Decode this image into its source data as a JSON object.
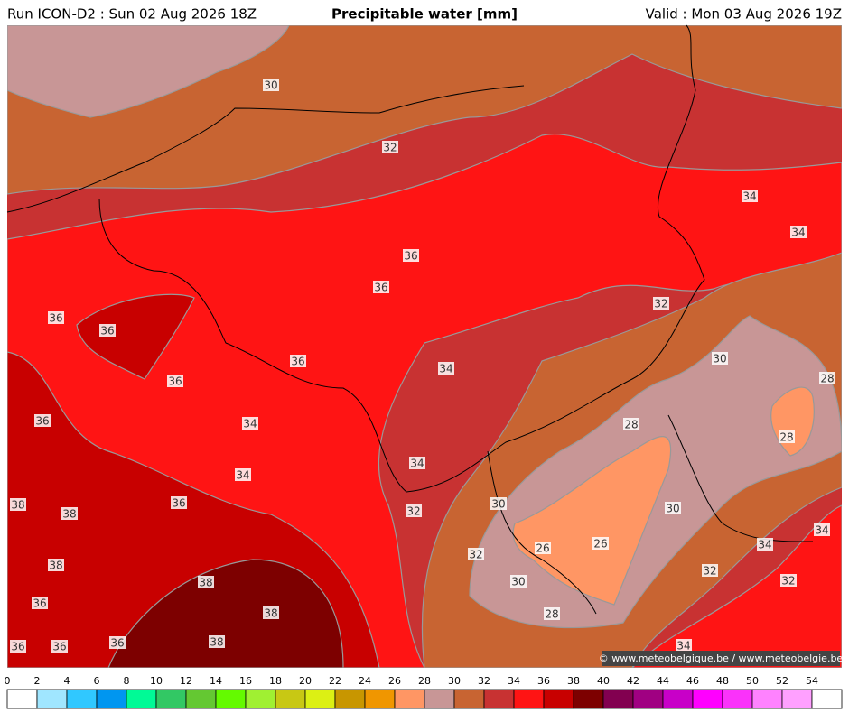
{
  "header": {
    "run": "Run ICON-D2 : Sun 02 Aug 2026 18Z",
    "title": "Precipitable water [mm]",
    "valid": "Valid : Mon 03 Aug 2026 19Z"
  },
  "map": {
    "contour_labels": [
      30,
      32,
      34,
      34,
      36,
      36,
      36,
      36,
      32,
      36,
      34,
      30,
      28,
      36,
      36,
      34,
      28,
      28,
      34,
      34,
      36,
      30,
      38,
      38,
      32,
      30,
      34,
      34,
      26,
      26,
      32,
      38,
      32,
      32,
      38,
      30,
      36,
      38,
      28,
      38,
      36,
      36,
      36,
      34
    ],
    "copyright": "© www.meteobelgique.be / www.meteobelgie.be"
  },
  "colorbar": {
    "ticks": [
      0,
      2,
      4,
      6,
      8,
      10,
      12,
      14,
      16,
      18,
      20,
      22,
      24,
      26,
      28,
      30,
      32,
      34,
      36,
      38,
      40,
      42,
      44,
      46,
      48,
      50,
      52,
      54
    ],
    "colors": [
      "#ffffff",
      "#a0e6ff",
      "#30c8ff",
      "#0096f0",
      "#00fa96",
      "#32c864",
      "#64c832",
      "#64fa00",
      "#a0f032",
      "#c8c814",
      "#dcf014",
      "#c89600",
      "#f09600",
      "#ff9664",
      "#c89696",
      "#c86432",
      "#c83232",
      "#ff1414",
      "#c80000",
      "#7d0000",
      "#820050",
      "#a00082",
      "#c800c8",
      "#ff00ff",
      "#fa32fa",
      "#ff82ff",
      "#ffa0ff",
      "#ffffff"
    ]
  }
}
